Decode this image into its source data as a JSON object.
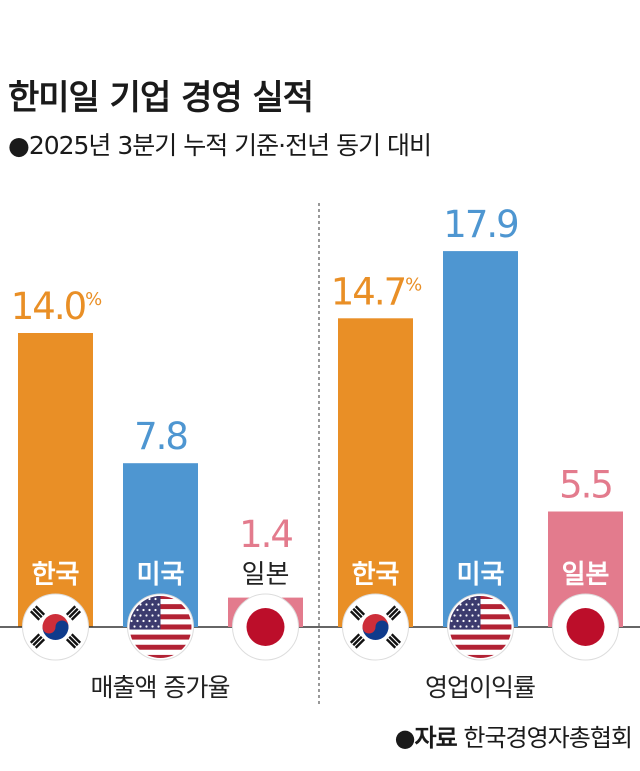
{
  "title": "한미일 기업 경영 실적",
  "subtitle": "●2025년 3분기 누적 기준·전년 동기 대비",
  "source": {
    "label": "●자료",
    "value": "한국경영자총협회"
  },
  "colors": {
    "korea": "#E98F26",
    "usa": "#4E96D1",
    "japan": "#E37B8D"
  },
  "chart_data": [
    {
      "type": "bar",
      "title": "매출액 증가율",
      "unit": "%",
      "categories": [
        "한국",
        "미국",
        "일본"
      ],
      "values": [
        14.0,
        7.8,
        1.4
      ],
      "value_labels": [
        "14.0",
        "7.8",
        "1.4"
      ]
    },
    {
      "type": "bar",
      "title": "영업이익률",
      "unit": "%",
      "categories": [
        "한국",
        "미국",
        "일본"
      ],
      "values": [
        14.7,
        17.9,
        5.5
      ],
      "value_labels": [
        "14.7",
        "17.9",
        "5.5"
      ]
    }
  ]
}
